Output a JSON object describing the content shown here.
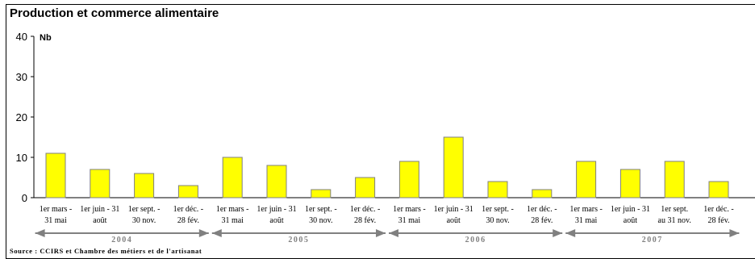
{
  "title": "Production et commerce alimentaire",
  "source": "Source : CCIRS et Chambre des métiers et de l'artisanat",
  "chart_data": {
    "type": "bar",
    "ylabel": "Nb",
    "ylim": [
      0,
      40
    ],
    "yticks": [
      0,
      10,
      20,
      30,
      40
    ],
    "grid": false,
    "bar_color": "#ffff00",
    "categories": [
      [
        "1er mars -",
        "31 mai"
      ],
      [
        "1er juin - 31",
        "août"
      ],
      [
        "1er sept. -",
        "30 nov."
      ],
      [
        "1er déc. -",
        "28 fév."
      ],
      [
        "1er mars -",
        "31 mai"
      ],
      [
        "1er juin - 31",
        "août"
      ],
      [
        "1er sept. -",
        "30 nov."
      ],
      [
        "1er déc. -",
        "28 fév."
      ],
      [
        "1er mars -",
        "31 mai"
      ],
      [
        "1er juin - 31",
        "août"
      ],
      [
        "1er sept. -",
        "30 nov."
      ],
      [
        "1er déc. -",
        "28 fév."
      ],
      [
        "1er mars -",
        "31 mai"
      ],
      [
        "1er juin - 31",
        "août"
      ],
      [
        "1er sept.",
        "au 31 nov."
      ],
      [
        "1er déc. -",
        "28 fév."
      ]
    ],
    "values": [
      11,
      7,
      6,
      3,
      10,
      8,
      2,
      5,
      9,
      15,
      4,
      2,
      9,
      7,
      9,
      4
    ],
    "years": [
      {
        "label": "2004",
        "start": 0,
        "end": 3
      },
      {
        "label": "2005",
        "start": 4,
        "end": 7
      },
      {
        "label": "2006",
        "start": 8,
        "end": 11
      },
      {
        "label": "2007",
        "start": 12,
        "end": 15
      }
    ]
  }
}
